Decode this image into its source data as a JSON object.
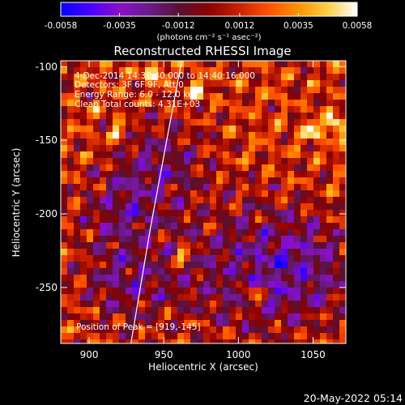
{
  "chart_data": {
    "type": "heatmap",
    "title": "Reconstructed RHESSI Image",
    "xlabel": "Heliocentric X (arcsec)",
    "ylabel": "Heliocentric Y (arcsec)",
    "xlim": [
      881,
      1072
    ],
    "ylim": [
      -288,
      -96
    ],
    "x_ticks": [
      900,
      950,
      1000,
      1050
    ],
    "y_ticks": [
      -100,
      -150,
      -200,
      -250
    ],
    "colorbar": {
      "range": [
        -0.0058,
        0.0058
      ],
      "ticks": [
        -0.0058,
        -0.0035,
        -0.0012,
        0.0012,
        0.0035,
        0.0058
      ],
      "tick_labels": [
        "-0.0058",
        "-0.0035",
        "-0.0012",
        "0.0012",
        "0.0035",
        "0.0058"
      ],
      "unit_label": "(photons cm⁻² s⁻¹ asec⁻²)",
      "colormap": [
        "#0000ff",
        "#4a00ff",
        "#8a10c8",
        "#6a1a8a",
        "#5a1030",
        "#8a0000",
        "#c82000",
        "#ff5000",
        "#ff9000",
        "#ffd040",
        "#ffffff"
      ]
    },
    "annotations": [
      "4-Dec-2014 14:38:40.000 to 14:40:16.000",
      "Detectors: 3F 6F 9F, Att 0",
      "Energy Range: 6.0 - 12.0 keV",
      "Clean     Total counts: 4.31E+03"
    ],
    "peak_label": "Position of Peak = [919,-145]",
    "peak": {
      "x": 919,
      "y": -145
    },
    "bright_sources": [
      {
        "x": 919,
        "y": -145
      },
      {
        "x": 1049,
        "y": -143
      },
      {
        "x": 1065,
        "y": -140
      },
      {
        "x": 973,
        "y": -117
      },
      {
        "x": 944,
        "y": -104
      },
      {
        "x": 963,
        "y": -228
      },
      {
        "x": 1010,
        "y": -255
      }
    ],
    "limb_curve": {
      "points": [
        [
          962,
          -96
        ],
        [
          952,
          -150
        ],
        [
          941,
          -210
        ],
        [
          928,
          -288
        ]
      ]
    }
  },
  "footer": {
    "timestamp": "20-May-2022 05:14"
  }
}
